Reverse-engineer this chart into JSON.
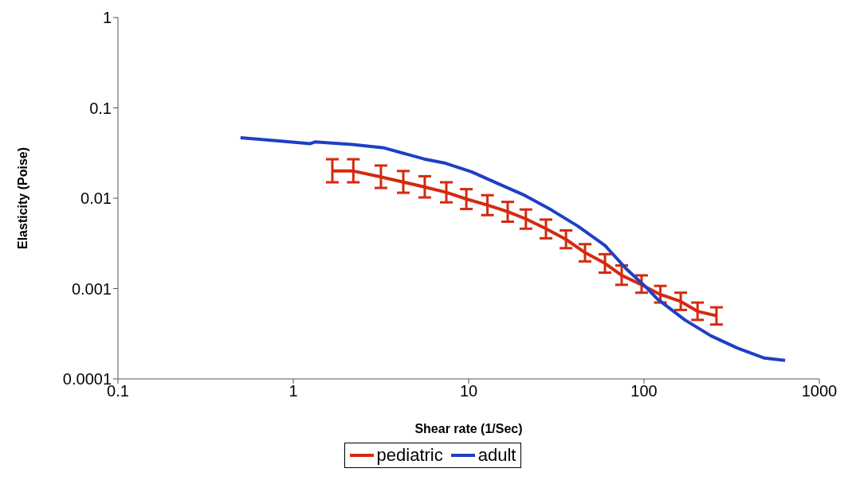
{
  "chart_data": {
    "type": "line",
    "xlabel": "Shear rate (1/Sec)",
    "ylabel": "Elasticity (Poise)",
    "log": "xy",
    "xlim": [
      0.1,
      1000
    ],
    "xticks": [
      0.1,
      1,
      10,
      100,
      1000
    ],
    "ylim": [
      0.0001,
      1
    ],
    "yticks": [
      0.0001,
      0.001,
      0.01,
      0.1,
      1
    ],
    "grid": false,
    "legend": "bottom",
    "marker": "none",
    "line_style": "solid",
    "series": [
      {
        "name": "pediatric",
        "color": "#d42a10",
        "x": [
          1.67,
          2.2,
          3.16,
          4.24,
          5.62,
          7.46,
          9.7,
          12.8,
          16.7,
          21.2,
          27.6,
          35.9,
          46.1,
          59.9,
          74.6,
          96.9,
          124,
          162,
          202,
          259
        ],
        "values": [
          0.02,
          0.02,
          0.0172,
          0.0151,
          0.0133,
          0.0116,
          0.0098,
          0.0084,
          0.0071,
          0.0059,
          0.0046,
          0.0035,
          0.0025,
          0.0019,
          0.0014,
          0.0011,
          0.00086,
          0.00072,
          0.00056,
          0.0005
        ],
        "errors": [
          [
            0.015,
            0.027
          ],
          [
            0.015,
            0.027
          ],
          [
            0.013,
            0.023
          ],
          [
            0.0115,
            0.02
          ],
          [
            0.0102,
            0.0175
          ],
          [
            0.009,
            0.015
          ],
          [
            0.0076,
            0.0126
          ],
          [
            0.0065,
            0.0108
          ],
          [
            0.0055,
            0.0091
          ],
          [
            0.0046,
            0.0075
          ],
          [
            0.0036,
            0.0058
          ],
          [
            0.0028,
            0.0044
          ],
          [
            0.002,
            0.0031
          ],
          [
            0.0015,
            0.0024
          ],
          [
            0.0011,
            0.0018
          ],
          [
            0.0009,
            0.0014
          ],
          [
            0.0007,
            0.00107
          ],
          [
            0.00058,
            0.0009
          ],
          [
            0.00045,
            0.0007
          ],
          [
            0.0004,
            0.00062
          ]
        ]
      },
      {
        "name": "adult",
        "color": "#1f3fc4",
        "x": [
          0.5,
          0.85,
          1.25,
          1.33,
          2.17,
          3.3,
          5.56,
          7.38,
          10.4,
          14.7,
          21,
          29.7,
          42,
          59.9,
          78.6,
          101,
          119,
          171,
          241,
          340,
          486,
          638
        ],
        "values": [
          0.0468,
          0.0429,
          0.0402,
          0.042,
          0.0393,
          0.036,
          0.0272,
          0.0244,
          0.0196,
          0.0145,
          0.0107,
          0.0074,
          0.0049,
          0.003,
          0.00168,
          0.00107,
          0.00077,
          0.00045,
          0.0003,
          0.00022,
          0.00017,
          0.00016
        ]
      }
    ]
  }
}
